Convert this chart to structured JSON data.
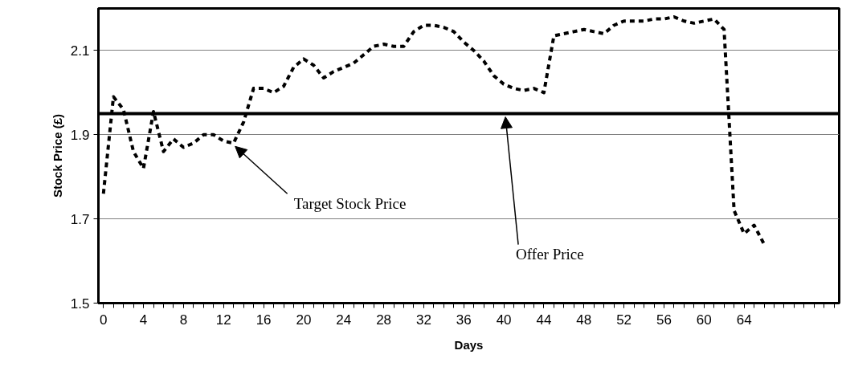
{
  "chart_data": {
    "type": "line",
    "xlabel": "Days",
    "ylabel": "Stock Price (£)",
    "x": [
      0,
      1,
      2,
      3,
      4,
      5,
      6,
      7,
      8,
      9,
      10,
      11,
      12,
      13,
      14,
      15,
      16,
      17,
      18,
      19,
      20,
      21,
      22,
      23,
      24,
      25,
      26,
      27,
      28,
      29,
      30,
      31,
      32,
      33,
      34,
      35,
      36,
      37,
      38,
      39,
      40,
      41,
      42,
      43,
      44,
      45,
      46,
      47,
      48,
      49,
      50,
      51,
      52,
      53,
      54,
      55,
      56,
      57,
      58,
      59,
      60,
      61,
      62,
      63,
      64,
      65,
      66
    ],
    "series": [
      {
        "color": "#000000",
        "values": [
          1.76,
          1.99,
          1.96,
          1.86,
          1.82,
          1.955,
          1.86,
          1.89,
          1.87,
          1.88,
          1.9,
          1.9,
          1.885,
          1.88,
          1.93,
          2.01,
          2.01,
          2.0,
          2.015,
          2.06,
          2.08,
          2.065,
          2.035,
          2.05,
          2.06,
          2.07,
          2.09,
          2.11,
          2.115,
          2.11,
          2.11,
          2.145,
          2.16,
          2.16,
          2.155,
          2.145,
          2.12,
          2.1,
          2.075,
          2.04,
          2.02,
          2.01,
          2.005,
          2.01,
          2.0,
          2.135,
          2.14,
          2.145,
          2.15,
          2.145,
          2.14,
          2.16,
          2.17,
          2.17,
          2.17,
          2.175,
          2.175,
          2.18,
          2.17,
          2.165,
          2.17,
          2.175,
          2.15,
          1.72,
          1.665,
          1.685,
          1.64
        ]
      }
    ],
    "line_style": "dashed",
    "marker": "none",
    "xlim": [
      -0.5,
      73.5
    ],
    "xticks": [
      0,
      4,
      8,
      12,
      16,
      20,
      24,
      28,
      32,
      36,
      40,
      44,
      48,
      52,
      56,
      60,
      64
    ],
    "ylim": [
      1.5,
      2.2
    ],
    "yticks": [
      1.5,
      1.7,
      1.9,
      2.1
    ],
    "grid": "y",
    "ref_lines": [
      {
        "axis": "y",
        "value": 1.95,
        "color": "#000000",
        "line_style": "solid"
      }
    ],
    "annotations": [
      {
        "text": "Target Stock Price",
        "x": 13,
        "y": 1.88
      },
      {
        "text": "Offer Price",
        "x": 40,
        "y": 1.95
      }
    ]
  }
}
